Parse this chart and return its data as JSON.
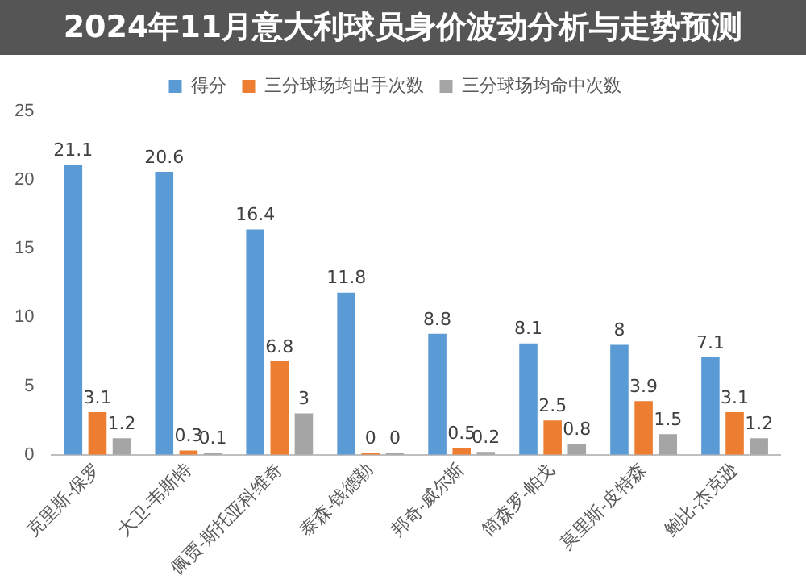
{
  "chart_data": {
    "type": "bar",
    "title": "2024年11月意大利球员身价波动分析与走势预测",
    "categories": [
      "克里斯-保罗",
      "大卫-韦斯特",
      "佩贾-斯托亚科维奇",
      "泰森-钱德勒",
      "邦奇-威尔斯",
      "简森罗-帕戈",
      "莫里斯-皮特森",
      "鲍比-杰克逊"
    ],
    "series": [
      {
        "name": "得分",
        "color": "#5b9bd5",
        "values": [
          21.1,
          20.6,
          16.4,
          11.8,
          8.8,
          8.1,
          8,
          7.1
        ]
      },
      {
        "name": "三分球场均出手次数",
        "color": "#ed7d31",
        "values": [
          3.1,
          0.3,
          6.8,
          0,
          0.5,
          2.5,
          3.9,
          3.1
        ]
      },
      {
        "name": "三分球场均命中次数",
        "color": "#a5a5a5",
        "values": [
          1.2,
          0.1,
          3,
          0,
          0.2,
          0.8,
          1.5,
          1.2
        ]
      }
    ],
    "ylim": [
      0,
      25
    ],
    "yticks": [
      0,
      5,
      10,
      15,
      20,
      25
    ],
    "grid": false,
    "legend": "top",
    "data_labels": true
  }
}
